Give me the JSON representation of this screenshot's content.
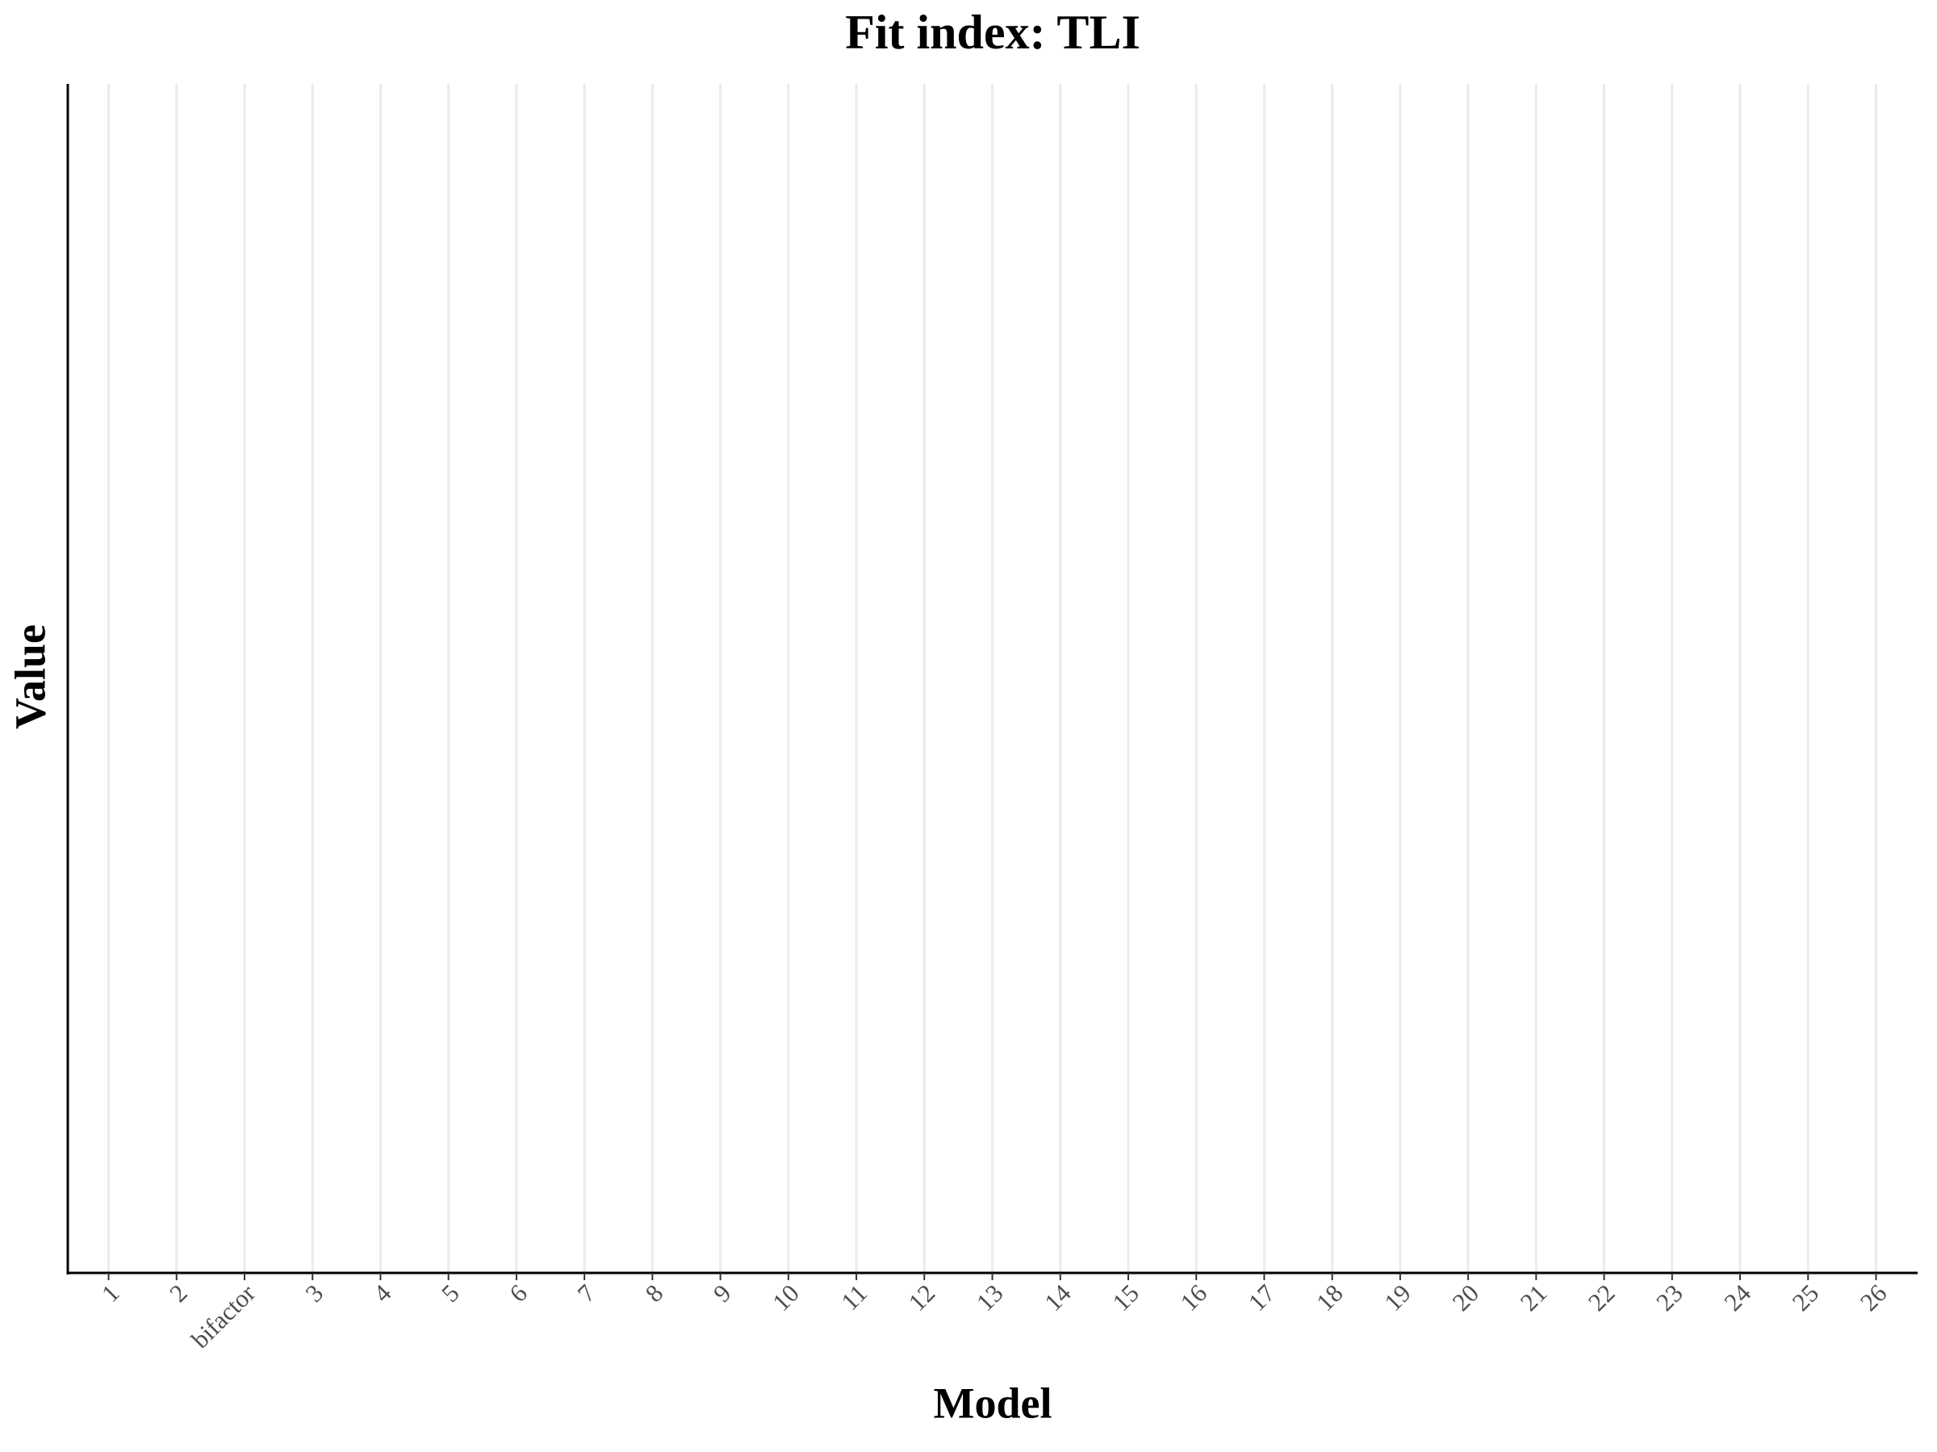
{
  "chart_data": {
    "type": "bar",
    "title": "Fit index: TLI",
    "x_label": "Model",
    "y_label": "Value",
    "categories": [
      "1",
      "2",
      "bifactor",
      "3",
      "4",
      "5",
      "6",
      "7",
      "8",
      "9",
      "10",
      "11",
      "12",
      "13",
      "14",
      "15",
      "16",
      "17",
      "18",
      "19",
      "20",
      "21",
      "22",
      "23",
      "24",
      "25",
      "26"
    ],
    "grid": true
  }
}
